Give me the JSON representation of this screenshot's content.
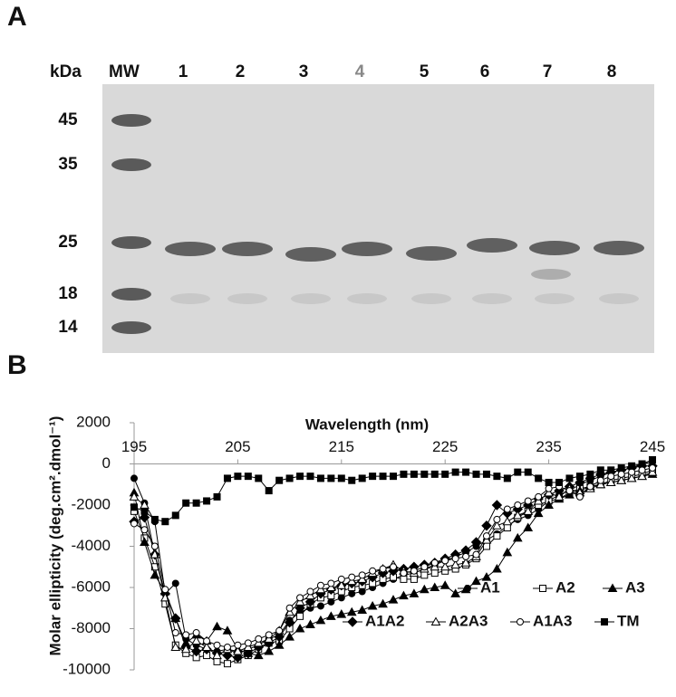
{
  "panel_a": {
    "label": "A",
    "unit_label": "kDa",
    "marker_lane_label": "MW",
    "lanes": [
      "1",
      "2",
      "3",
      "4",
      "5",
      "6",
      "7",
      "8"
    ],
    "marker_sizes": [
      "45",
      "35",
      "25",
      "18",
      "14"
    ]
  },
  "chart_data": {
    "type": "line",
    "panel_label": "B",
    "xlabel": "Wavelength (nm)",
    "ylabel": "Molar ellipticity (deg.cm².dmol⁻¹)",
    "xlim": [
      195,
      245
    ],
    "xticks": [
      195,
      205,
      215,
      225,
      235,
      245
    ],
    "ylim": [
      -10000,
      2000
    ],
    "yticks": [
      -10000,
      -8000,
      -6000,
      -4000,
      -2000,
      0,
      2000
    ],
    "x": [
      195,
      196,
      197,
      198,
      199,
      200,
      201,
      202,
      203,
      204,
      205,
      206,
      207,
      208,
      209,
      210,
      211,
      212,
      213,
      214,
      215,
      216,
      217,
      218,
      219,
      220,
      221,
      222,
      223,
      224,
      225,
      226,
      227,
      228,
      229,
      230,
      231,
      232,
      233,
      234,
      235,
      236,
      237,
      238,
      239,
      240,
      241,
      242,
      243,
      244,
      245
    ],
    "series": [
      {
        "name": "A1",
        "color": "#000000",
        "marker": "circle",
        "filled": true,
        "values": [
          -700,
          -1900,
          -2800,
          -6300,
          -5800,
          -8500,
          -8800,
          -9000,
          -9100,
          -9000,
          -9200,
          -9000,
          -8800,
          -8500,
          -8300,
          -7600,
          -7200,
          -7000,
          -6900,
          -6700,
          -6500,
          -6300,
          -6200,
          -6000,
          -5800,
          -5600,
          -5400,
          -5300,
          -5100,
          -4900,
          -4700,
          -4500,
          -4300,
          -4000,
          -3700,
          -3400,
          -3000,
          -2700,
          -2500,
          -2200,
          -1800,
          -1500,
          -1300,
          -1000,
          -800,
          -600,
          -400,
          -300,
          -200,
          0,
          100
        ]
      },
      {
        "name": "A2",
        "color": "#000000",
        "marker": "square",
        "filled": false,
        "values": [
          -2300,
          -3600,
          -5000,
          -6800,
          -8800,
          -9200,
          -9400,
          -9300,
          -9600,
          -9700,
          -9500,
          -9300,
          -9000,
          -8700,
          -8600,
          -8000,
          -7400,
          -6800,
          -6500,
          -6400,
          -6200,
          -6000,
          -5900,
          -5800,
          -5600,
          -5500,
          -5600,
          -5600,
          -5400,
          -5300,
          -5200,
          -5100,
          -4900,
          -4600,
          -4000,
          -3500,
          -3100,
          -2600,
          -2300,
          -2000,
          -1800,
          -1700,
          -1400,
          -1200,
          -1100,
          -1000,
          -800,
          -700,
          -600,
          -500,
          -300
        ]
      },
      {
        "name": "A3",
        "color": "#000000",
        "marker": "triangle",
        "filled": true,
        "values": [
          -1400,
          -3800,
          -5400,
          -6200,
          -7500,
          -8700,
          -8300,
          -8600,
          -7900,
          -8100,
          -9000,
          -9200,
          -9300,
          -9100,
          -8800,
          -8400,
          -8000,
          -7800,
          -7600,
          -7400,
          -7300,
          -7200,
          -7100,
          -6900,
          -6800,
          -6600,
          -6400,
          -6300,
          -6100,
          -6000,
          -5900,
          -6300,
          -6100,
          -5700,
          -5500,
          -5100,
          -4300,
          -3600,
          -3100,
          -2400,
          -2000,
          -1700,
          -1500,
          -1300,
          -1100,
          -1000,
          -900,
          -800,
          -700,
          -600,
          -500
        ]
      },
      {
        "name": "A1A2",
        "color": "#000000",
        "marker": "diamond",
        "filled": true,
        "values": [
          -2800,
          -2600,
          -4400,
          -6300,
          -7500,
          -8900,
          -9100,
          -9000,
          -9200,
          -9300,
          -9400,
          -9200,
          -8900,
          -8700,
          -8400,
          -7700,
          -7000,
          -6700,
          -6300,
          -6100,
          -5900,
          -5800,
          -5700,
          -5500,
          -5300,
          -5200,
          -5100,
          -5000,
          -4900,
          -4800,
          -4600,
          -4400,
          -4200,
          -3800,
          -3000,
          -2000,
          -2400,
          -2200,
          -2000,
          -1700,
          -1500,
          -1300,
          -1100,
          -900,
          -700,
          -500,
          -400,
          -300,
          -200,
          -100,
          -100
        ]
      },
      {
        "name": "A2A3",
        "color": "#000000",
        "marker": "triangle",
        "filled": false,
        "values": [
          -1600,
          -2000,
          -4400,
          -6500,
          -8900,
          -9000,
          -8600,
          -8900,
          -9300,
          -9000,
          -9100,
          -8900,
          -8700,
          -8500,
          -8100,
          -7200,
          -6700,
          -6400,
          -6100,
          -6000,
          -5900,
          -5700,
          -5600,
          -5300,
          -5100,
          -4900,
          -5200,
          -5300,
          -5100,
          -5000,
          -5000,
          -4900,
          -4800,
          -4500,
          -3700,
          -3000,
          -2800,
          -2500,
          -2300,
          -1800,
          -1400,
          -1600,
          -1200,
          -1400,
          -1200,
          -1000,
          -900,
          -800,
          -700,
          -600,
          -400
        ]
      },
      {
        "name": "A1A3",
        "color": "#000000",
        "marker": "circle",
        "filled": false,
        "values": [
          -2900,
          -3200,
          -4000,
          -6100,
          -8200,
          -8300,
          -8200,
          -8600,
          -8800,
          -8900,
          -8800,
          -8700,
          -8500,
          -8300,
          -8100,
          -7000,
          -6500,
          -6200,
          -5900,
          -5800,
          -5600,
          -5500,
          -5400,
          -5200,
          -5100,
          -5000,
          -5300,
          -5200,
          -5000,
          -4800,
          -4700,
          -4600,
          -4500,
          -4400,
          -3500,
          -2700,
          -2200,
          -2000,
          -1800,
          -1600,
          -1200,
          -1100,
          -1300,
          -1600,
          -1100,
          -800,
          -600,
          -500,
          -400,
          -300,
          -200
        ]
      },
      {
        "name": "TM",
        "color": "#000000",
        "marker": "square",
        "filled": true,
        "values": [
          -2100,
          -2300,
          -2700,
          -2800,
          -2500,
          -1900,
          -1900,
          -1800,
          -1600,
          -700,
          -600,
          -600,
          -700,
          -1300,
          -800,
          -700,
          -600,
          -600,
          -700,
          -700,
          -700,
          -800,
          -700,
          -600,
          -600,
          -600,
          -500,
          -500,
          -500,
          -500,
          -500,
          -400,
          -400,
          -500,
          -500,
          -600,
          -700,
          -400,
          -400,
          -700,
          -900,
          -900,
          -700,
          -600,
          -500,
          -300,
          -300,
          -200,
          -100,
          0,
          200
        ]
      }
    ]
  }
}
